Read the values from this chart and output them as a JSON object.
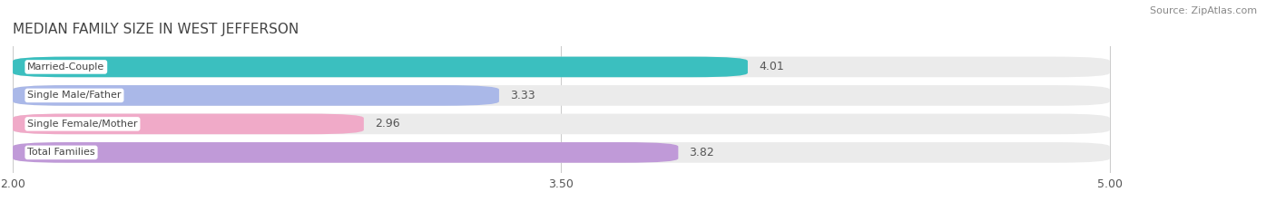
{
  "title": "MEDIAN FAMILY SIZE IN WEST JEFFERSON",
  "source": "Source: ZipAtlas.com",
  "categories": [
    "Married-Couple",
    "Single Male/Father",
    "Single Female/Mother",
    "Total Families"
  ],
  "values": [
    4.01,
    3.33,
    2.96,
    3.82
  ],
  "bar_colors": [
    "#3bbfbf",
    "#aab8e8",
    "#f0aac8",
    "#c09ad8"
  ],
  "label_bg_colors": [
    "#ffffff",
    "#ffffff",
    "#ffffff",
    "#ffffff"
  ],
  "xlim": [
    2.0,
    5.0
  ],
  "xstart": 2.0,
  "xticks": [
    2.0,
    3.5,
    5.0
  ],
  "bar_height": 0.72,
  "bar_gap": 0.28,
  "value_fontsize": 9,
  "label_fontsize": 8,
  "title_fontsize": 11,
  "source_fontsize": 8,
  "background_color": "#ffffff",
  "bar_background_color": "#ebebeb",
  "grid_color": "#cccccc",
  "text_color": "#555555",
  "value_color": "#555555"
}
